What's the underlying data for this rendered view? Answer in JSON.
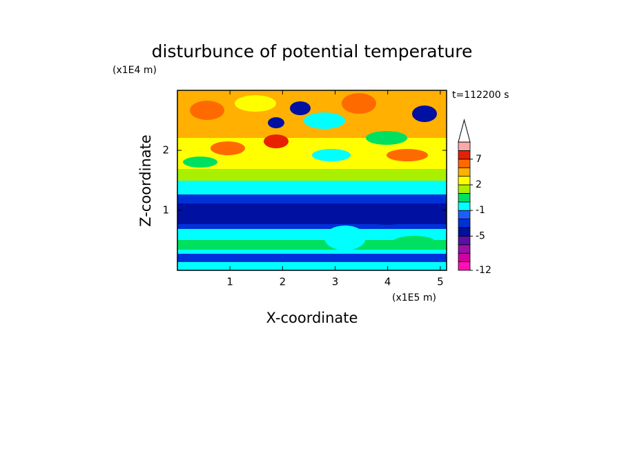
{
  "chart_data": {
    "type": "contour",
    "title": "disturbunce of potential temperature",
    "x_label": "X-coordinate",
    "y_label": "Z-coordinate",
    "x_unit": "(x1E5 m)",
    "y_unit": "(x1E4 m)",
    "time_label": "t=112200 s",
    "xlim": [
      0,
      5.12
    ],
    "ylim": [
      0,
      3
    ],
    "xticks": [
      1,
      2,
      3,
      4,
      5
    ],
    "yticks": [
      1,
      2
    ],
    "colorbar": {
      "levels": [
        -12,
        -10,
        -8,
        -6,
        -5,
        -3,
        -2,
        -1,
        0,
        1,
        2,
        3,
        5,
        7,
        9,
        11
      ],
      "colors": [
        "#ff10b4",
        "#d000a0",
        "#9a10a8",
        "#5a10a8",
        "#0010a0",
        "#0030d8",
        "#1e5cff",
        "#00ffff",
        "#00e060",
        "#a8f000",
        "#ffff00",
        "#ffb000",
        "#ff6a00",
        "#e82000",
        "#ffa8a8"
      ],
      "ticks": [
        -12,
        -5,
        -1,
        2,
        7
      ]
    }
  }
}
